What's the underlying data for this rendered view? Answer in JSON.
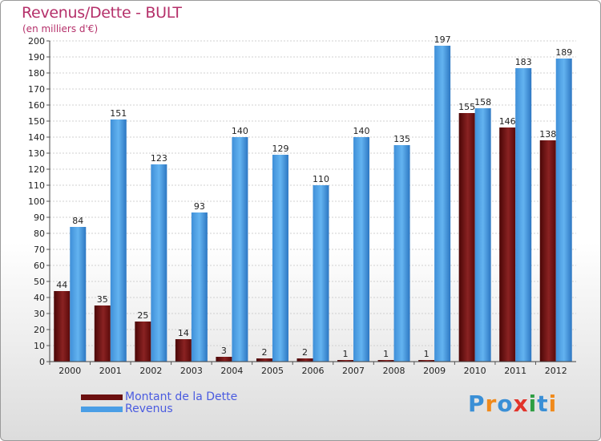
{
  "header": {
    "title": "Revenus/Dette - BULT",
    "subtitle": "(en milliers d'€)"
  },
  "legend": {
    "items": [
      {
        "label": "Montant de la Dette",
        "color": "#6b0f0f"
      },
      {
        "label": "Revenus",
        "color": "#4a9ee6"
      }
    ]
  },
  "logo": {
    "text": "Proxiti",
    "letter_colors": [
      "#3a8fd6",
      "#f08a1c",
      "#3a8fd6",
      "#e2342b",
      "#2f9e44",
      "#3a8fd6",
      "#f08a1c"
    ]
  },
  "chart_data": {
    "type": "bar",
    "categories": [
      "2000",
      "2001",
      "2002",
      "2003",
      "2004",
      "2005",
      "2006",
      "2007",
      "2008",
      "2009",
      "2010",
      "2011",
      "2012"
    ],
    "series": [
      {
        "name": "Montant de la Dette",
        "values": [
          44,
          35,
          25,
          14,
          3,
          2,
          2,
          1,
          1,
          1,
          155,
          146,
          138
        ],
        "color": "#7a1616"
      },
      {
        "name": "Revenus",
        "values": [
          84,
          151,
          123,
          93,
          140,
          129,
          110,
          140,
          135,
          197,
          158,
          183,
          189
        ],
        "color": "#4a9ee6"
      }
    ],
    "ylim": [
      0,
      200
    ],
    "ytick_step": 10,
    "grid": true,
    "legend_position": "bottom-left"
  }
}
